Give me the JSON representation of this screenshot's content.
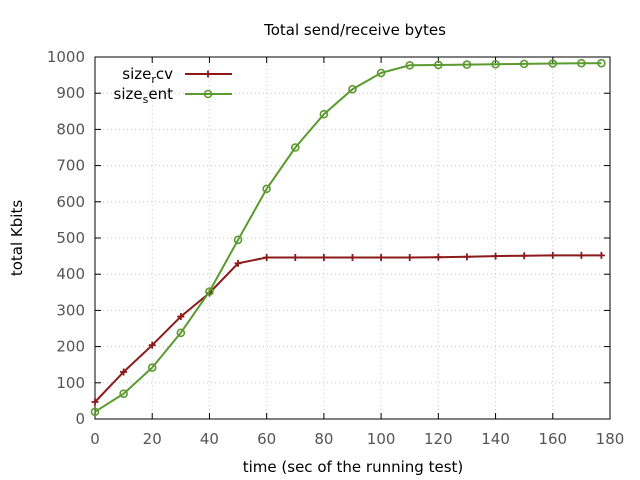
{
  "chart_data": {
    "type": "line",
    "title": "Total send/receive bytes",
    "xlabel": "time (sec of the running test)",
    "ylabel": "total Kbits",
    "xlim": [
      0,
      180
    ],
    "ylim": [
      0,
      1000
    ],
    "xticks": [
      0,
      20,
      40,
      60,
      80,
      100,
      120,
      140,
      160,
      180
    ],
    "yticks": [
      0,
      100,
      200,
      300,
      400,
      500,
      600,
      700,
      800,
      900,
      1000
    ],
    "grid": true,
    "legend_position": "top-left",
    "series": [
      {
        "name": "size_rcv",
        "legend_main_1": "size",
        "legend_sub": "r",
        "legend_main_2": "cv",
        "color": "#8b1a1a",
        "marker": "plus",
        "x": [
          0,
          10,
          20,
          30,
          40,
          50,
          60,
          70,
          80,
          90,
          100,
          110,
          120,
          130,
          140,
          150,
          160,
          170,
          177
        ],
        "y": [
          47,
          130,
          204,
          283,
          348,
          430,
          446,
          446,
          446,
          446,
          446,
          446,
          447,
          448,
          450,
          451,
          452,
          452,
          452
        ]
      },
      {
        "name": "size_sent",
        "legend_main_1": "size",
        "legend_sub": "s",
        "legend_main_2": "ent",
        "color": "#5a9a2f",
        "marker": "circle",
        "x": [
          0,
          10,
          20,
          30,
          40,
          50,
          60,
          70,
          80,
          90,
          100,
          110,
          120,
          130,
          140,
          150,
          160,
          170,
          177
        ],
        "y": [
          20,
          70,
          142,
          238,
          352,
          495,
          636,
          750,
          842,
          911,
          956,
          977,
          978,
          979,
          980,
          981,
          982,
          983,
          983
        ]
      }
    ]
  }
}
